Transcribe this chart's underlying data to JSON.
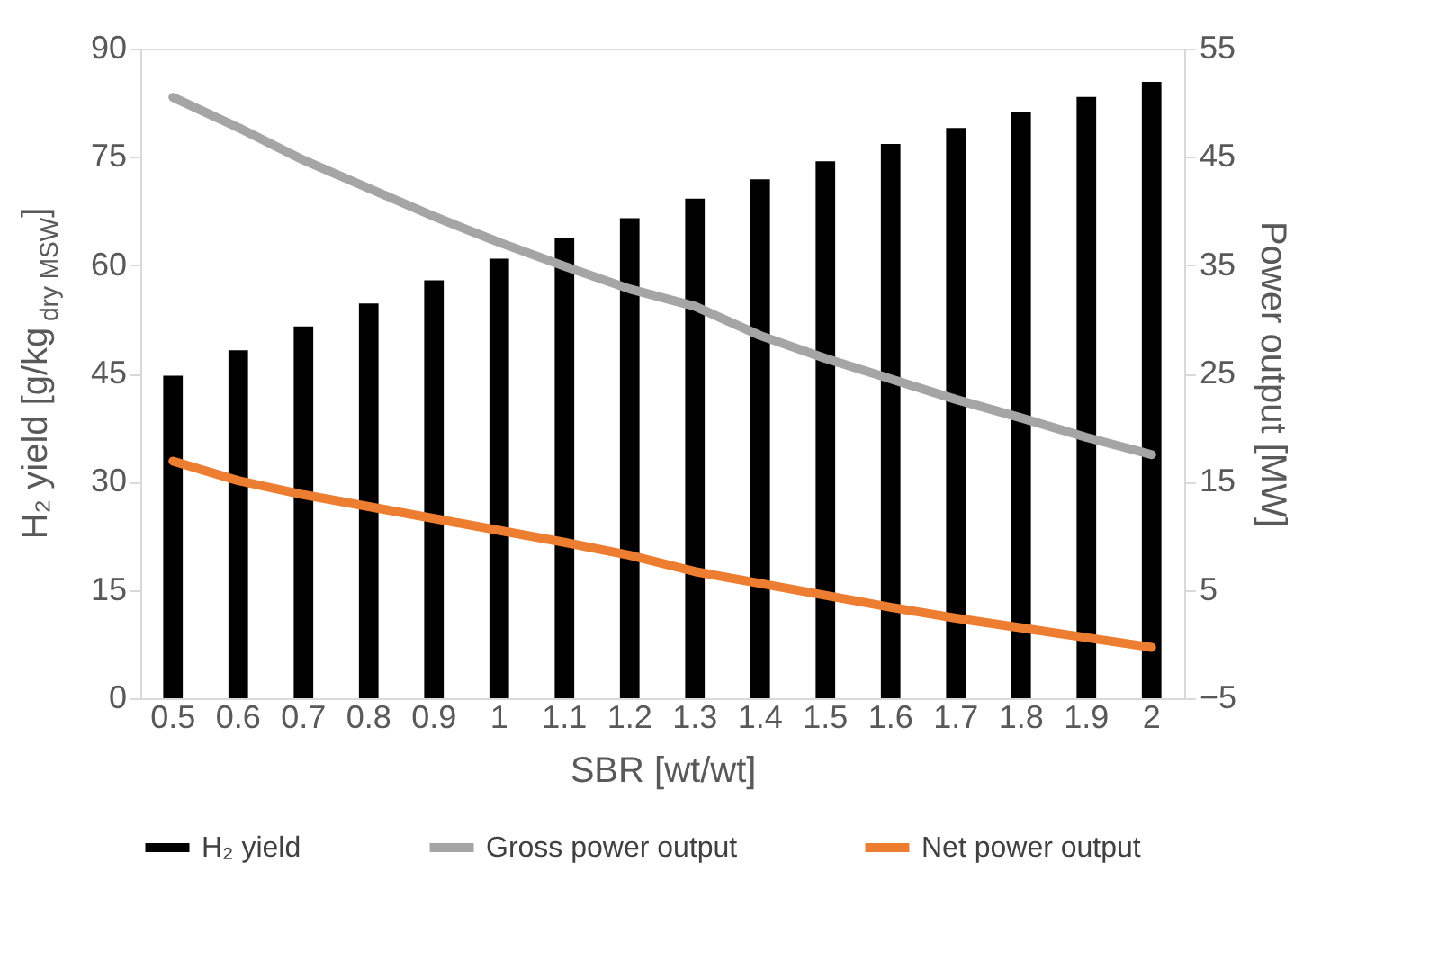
{
  "chart_data": {
    "type": "bar",
    "categories": [
      "0.5",
      "0.6",
      "0.7",
      "0.8",
      "0.9",
      "1",
      "1.1",
      "1.2",
      "1.3",
      "1.4",
      "1.5",
      "1.6",
      "1.7",
      "1.8",
      "1.9",
      "2"
    ],
    "xlabel": "SBR [wt/wt]",
    "ylabel": "H₂ yield [g/kg$_{dry MSW}$]",
    "y2label": "Power output [MW]",
    "ylim": [
      0,
      90
    ],
    "yticks": [
      0,
      15,
      30,
      45,
      60,
      75,
      90
    ],
    "y2lim": [
      -5,
      55
    ],
    "y2ticks": [
      -5,
      5,
      15,
      25,
      35,
      45,
      55
    ],
    "grid": false,
    "legend": "bottom",
    "series": [
      {
        "name": "H₂ yield",
        "color": "#000000",
        "values": [
          44.7,
          48.2,
          51.5,
          54.7,
          57.9,
          60.9,
          63.8,
          66.5,
          69.2,
          71.9,
          74.4,
          76.8,
          79.0,
          81.2,
          83.3,
          85.4
        ]
      },
      {
        "name": "Gross power output",
        "type": "line",
        "axis": "y2",
        "color": "#a5a5a5",
        "values": [
          50.5,
          47.7,
          44.7,
          42.1,
          39.5,
          37.1,
          34.9,
          32.8,
          31.2,
          28.5,
          26.4,
          24.5,
          22.6,
          20.9,
          19.1,
          17.5
        ]
      },
      {
        "name": "Net power output",
        "type": "line",
        "axis": "y2",
        "color": "#ed7d31",
        "values": [
          16.9,
          15.1,
          13.8,
          12.7,
          11.6,
          10.5,
          9.4,
          8.2,
          6.7,
          5.6,
          4.5,
          3.4,
          2.4,
          1.5,
          0.6,
          -0.3
        ]
      }
    ]
  }
}
